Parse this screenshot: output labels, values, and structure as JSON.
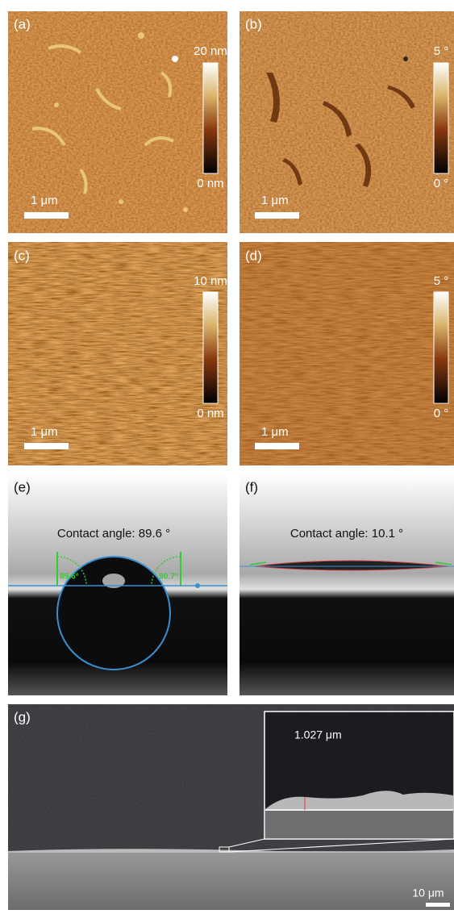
{
  "panels": {
    "a": {
      "label": "(a)",
      "scale_bar": "1 μm",
      "colorbar_max": "20 nm",
      "colorbar_min": "0 nm"
    },
    "b": {
      "label": "(b)",
      "scale_bar": "1 μm",
      "colorbar_max": "5 °",
      "colorbar_min": "0 °"
    },
    "c": {
      "label": "(c)",
      "scale_bar": "1 μm",
      "colorbar_max": "10 nm",
      "colorbar_min": "0 nm"
    },
    "d": {
      "label": "(d)",
      "scale_bar": "1 μm",
      "colorbar_max": "5 °",
      "colorbar_min": "0 °"
    },
    "e": {
      "label": "(e)",
      "caption": "Contact angle: 89.6 °",
      "left_angle": "89.6°",
      "right_angle": "90.7°"
    },
    "f": {
      "label": "(f)",
      "caption": "Contact angle: 10.1 °"
    },
    "g": {
      "label": "(g)",
      "thickness": "1.027 μm",
      "scale_bar": "10 μm"
    }
  }
}
